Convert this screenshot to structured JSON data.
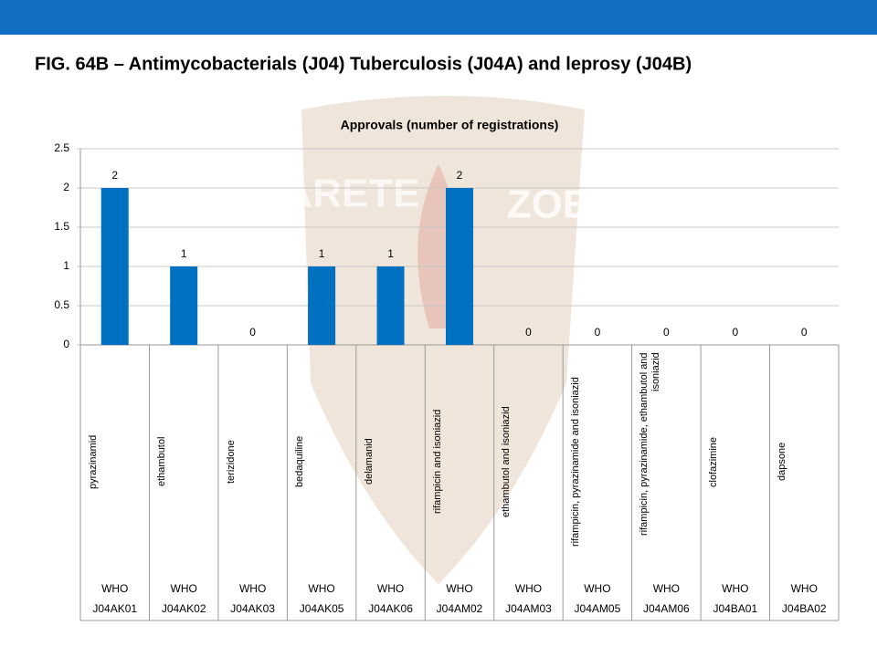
{
  "page_title": "FIG. 64B – Antimycobacterials (J04) Tuberculosis (J04A) and leprosy (J04B)",
  "watermark": [
    "ARETE",
    "ZOE"
  ],
  "chart_data": {
    "type": "bar",
    "title": "Approvals (number of registrations)",
    "categories": [
      "pyrazinamid",
      "ethambutol",
      "terizidone",
      "bedaquiline",
      "delamanid",
      "rifampicin and isoniazid",
      "ethambutol and isoniazid",
      "rifampicin, pyrazinamide and isoniazid",
      "rifampicin, pyrazinamide, ethambutol and isoniazid",
      "clofazimine",
      "dapsone"
    ],
    "category_groups": [
      "WHO",
      "WHO",
      "WHO",
      "WHO",
      "WHO",
      "WHO",
      "WHO",
      "WHO",
      "WHO",
      "WHO",
      "WHO"
    ],
    "category_codes": [
      "J04AK01",
      "J04AK02",
      "J04AK03",
      "J04AK05",
      "J04AK06",
      "J04AM02",
      "J04AM03",
      "J04AM05",
      "J04AM06",
      "J04BA01",
      "J04BA02"
    ],
    "values": [
      2,
      1,
      0,
      1,
      1,
      2,
      0,
      0,
      0,
      0,
      0
    ],
    "color": "#0070c0",
    "ylim": [
      0,
      2.5
    ],
    "yticks": [
      0,
      0.5,
      1,
      1.5,
      2,
      2.5
    ],
    "grid": true,
    "data_labels": true
  }
}
